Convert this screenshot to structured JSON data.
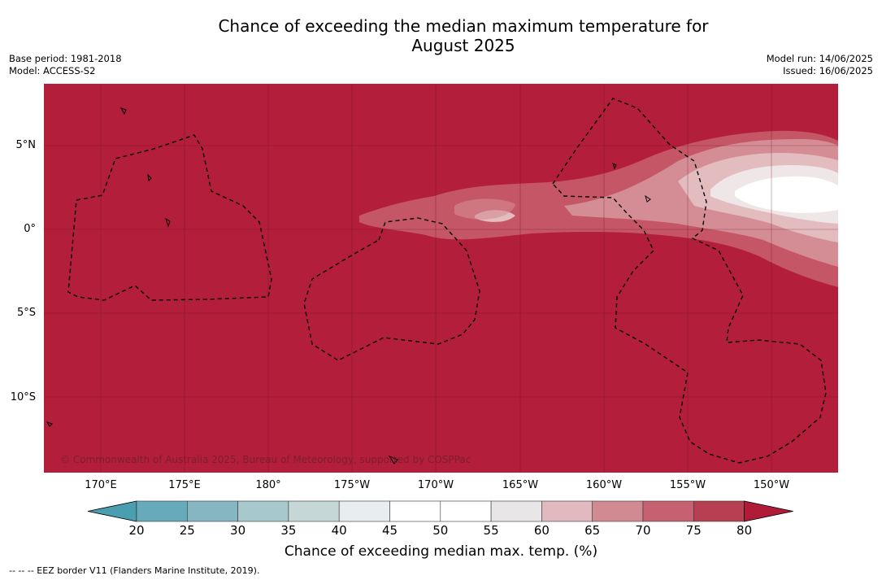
{
  "title_line1": "Chance of exceeding the median maximum temperature for",
  "title_line2": "August 2025",
  "meta_left": {
    "base_period": "Base period: 1981-2018",
    "model": "Model: ACCESS-S2"
  },
  "meta_right": {
    "model_run": "Model run: 14/06/2025",
    "issued": "Issued: 16/06/2025"
  },
  "credit": "© Commonwealth of Australia 2025, Bureau of Meteorology, supported by COSPPac",
  "lat_labels": [
    "5°N",
    "0°",
    "5°S",
    "10°S"
  ],
  "lon_labels": [
    "170°E",
    "175°E",
    "180°",
    "175°W",
    "170°W",
    "165°W",
    "160°W",
    "155°W",
    "150°W"
  ],
  "colorbar": {
    "ticks": [
      "20",
      "25",
      "30",
      "35",
      "40",
      "45",
      "50",
      "55",
      "60",
      "65",
      "70",
      "75",
      "80"
    ],
    "colors": [
      "#67aabb",
      "#86b6c2",
      "#a7c8cc",
      "#c6d7d8",
      "#e8edf0",
      "#ffffff",
      "#ffffff",
      "#e8e6e7",
      "#e1b9be",
      "#d18a92",
      "#c56170",
      "#b83f51"
    ],
    "under_color": "#4b9eb0",
    "over_color": "#b01c38",
    "label": "Chance of exceeding median max. temp. (%)"
  },
  "map_colors": {
    "background": "#b31e3a",
    "band70": "#c55665",
    "band65": "#d48d95",
    "band60": "#e3bcc0",
    "band55": "#efe6e8",
    "core": "#ffffff"
  },
  "footer": "--  --  -- EEZ border V11 (Flanders Marine Institute, 2019)."
}
